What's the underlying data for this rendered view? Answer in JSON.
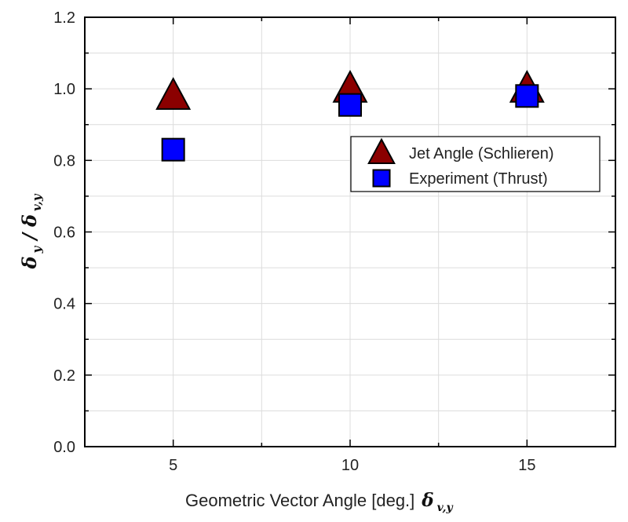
{
  "chart_data": {
    "type": "scatter",
    "x_ticks": [
      5,
      10,
      15
    ],
    "y_ticks": [
      "0.0",
      "0.2",
      "0.4",
      "0.6",
      "0.8",
      "1.0",
      "1.2"
    ],
    "xlim": [
      2.5,
      17.5
    ],
    "ylim": [
      0,
      1.2
    ],
    "grid": true,
    "legend_position": "upper-right",
    "xlabel": "Geometric Vector Angle [deg.]",
    "xlabel_symbol": "δ",
    "xlabel_symbol_sub": "v,y",
    "ylabel_num": "δ",
    "ylabel_num_sub": "y",
    "ylabel_sep": "/",
    "ylabel_den": "δ",
    "ylabel_den_sub": "v,y",
    "series": [
      {
        "name": "Jet Angle (Schlieren)",
        "marker": "triangle",
        "color": "#8b0000",
        "x": [
          5,
          10,
          15
        ],
        "y": [
          0.98,
          1.0,
          1.0
        ]
      },
      {
        "name": "Experiment (Thrust)",
        "marker": "square",
        "color": "#0000ff",
        "x": [
          5,
          10,
          15
        ],
        "y": [
          0.83,
          0.955,
          0.98
        ]
      }
    ]
  }
}
